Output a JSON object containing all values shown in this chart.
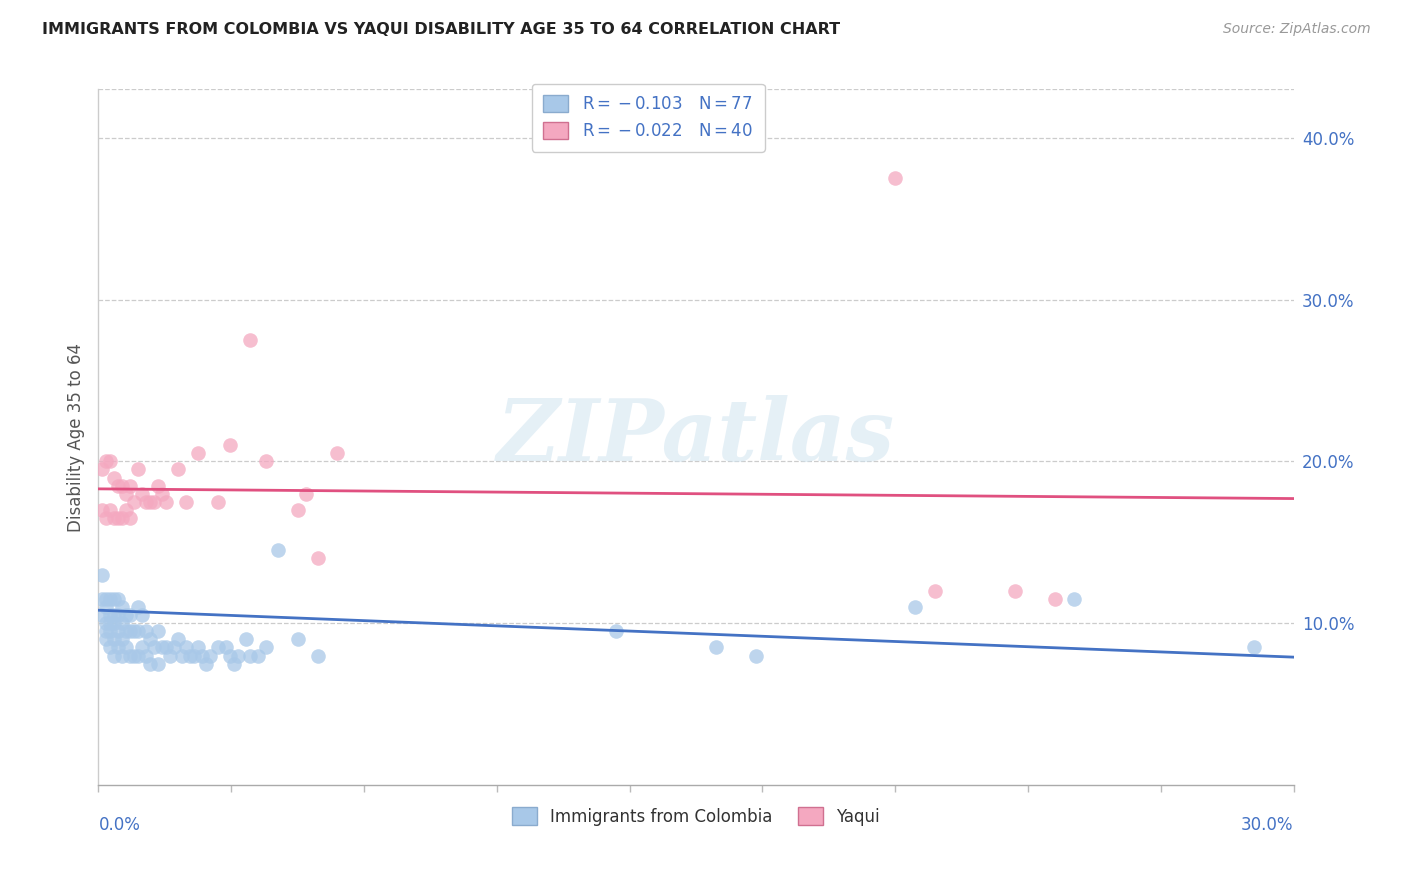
{
  "title": "IMMIGRANTS FROM COLOMBIA VS YAQUI DISABILITY AGE 35 TO 64 CORRELATION CHART",
  "source": "Source: ZipAtlas.com",
  "ylabel": "Disability Age 35 to 64",
  "y_ticks": [
    0.1,
    0.2,
    0.3,
    0.4
  ],
  "y_tick_labels": [
    "10.0%",
    "20.0%",
    "30.0%",
    "40.0%"
  ],
  "x_range": [
    0.0,
    0.3
  ],
  "y_range": [
    0.0,
    0.43
  ],
  "x_tick_labels": [
    "0.0%",
    "30.0%"
  ],
  "color_colombia": "#a8c8e8",
  "color_yaqui": "#f4a8c0",
  "color_line_colombia": "#4472c4",
  "color_line_yaqui": "#e05080",
  "color_axis_ticks": "#4472c4",
  "watermark": "ZIPatlas",
  "colombia_x": [
    0.001,
    0.001,
    0.001,
    0.002,
    0.002,
    0.002,
    0.002,
    0.002,
    0.003,
    0.003,
    0.003,
    0.003,
    0.003,
    0.004,
    0.004,
    0.004,
    0.004,
    0.004,
    0.005,
    0.005,
    0.005,
    0.005,
    0.006,
    0.006,
    0.006,
    0.006,
    0.007,
    0.007,
    0.007,
    0.008,
    0.008,
    0.008,
    0.009,
    0.009,
    0.01,
    0.01,
    0.01,
    0.011,
    0.011,
    0.012,
    0.012,
    0.013,
    0.013,
    0.014,
    0.015,
    0.015,
    0.016,
    0.017,
    0.018,
    0.019,
    0.02,
    0.021,
    0.022,
    0.023,
    0.024,
    0.025,
    0.026,
    0.027,
    0.028,
    0.03,
    0.032,
    0.033,
    0.034,
    0.035,
    0.037,
    0.038,
    0.04,
    0.042,
    0.045,
    0.05,
    0.055,
    0.13,
    0.155,
    0.165,
    0.205,
    0.245,
    0.29
  ],
  "colombia_y": [
    0.13,
    0.115,
    0.105,
    0.115,
    0.11,
    0.1,
    0.095,
    0.09,
    0.115,
    0.105,
    0.1,
    0.095,
    0.085,
    0.115,
    0.105,
    0.1,
    0.09,
    0.08,
    0.115,
    0.105,
    0.095,
    0.085,
    0.11,
    0.1,
    0.09,
    0.08,
    0.105,
    0.095,
    0.085,
    0.105,
    0.095,
    0.08,
    0.095,
    0.08,
    0.11,
    0.095,
    0.08,
    0.105,
    0.085,
    0.095,
    0.08,
    0.09,
    0.075,
    0.085,
    0.095,
    0.075,
    0.085,
    0.085,
    0.08,
    0.085,
    0.09,
    0.08,
    0.085,
    0.08,
    0.08,
    0.085,
    0.08,
    0.075,
    0.08,
    0.085,
    0.085,
    0.08,
    0.075,
    0.08,
    0.09,
    0.08,
    0.08,
    0.085,
    0.145,
    0.09,
    0.08,
    0.095,
    0.085,
    0.08,
    0.11,
    0.115,
    0.085
  ],
  "yaqui_x": [
    0.001,
    0.001,
    0.002,
    0.002,
    0.003,
    0.003,
    0.004,
    0.004,
    0.005,
    0.005,
    0.006,
    0.006,
    0.007,
    0.007,
    0.008,
    0.008,
    0.009,
    0.01,
    0.011,
    0.012,
    0.013,
    0.014,
    0.015,
    0.016,
    0.017,
    0.02,
    0.022,
    0.025,
    0.03,
    0.033,
    0.038,
    0.042,
    0.05,
    0.052,
    0.055,
    0.06,
    0.2,
    0.21,
    0.23,
    0.24
  ],
  "yaqui_y": [
    0.195,
    0.17,
    0.2,
    0.165,
    0.2,
    0.17,
    0.19,
    0.165,
    0.185,
    0.165,
    0.185,
    0.165,
    0.18,
    0.17,
    0.185,
    0.165,
    0.175,
    0.195,
    0.18,
    0.175,
    0.175,
    0.175,
    0.185,
    0.18,
    0.175,
    0.195,
    0.175,
    0.205,
    0.175,
    0.21,
    0.275,
    0.2,
    0.17,
    0.18,
    0.14,
    0.205,
    0.375,
    0.12,
    0.12,
    0.115
  ],
  "colombia_trend_x": [
    0.0,
    0.3
  ],
  "colombia_trend_y": [
    0.108,
    0.079
  ],
  "yaqui_trend_x": [
    0.0,
    0.3
  ],
  "yaqui_trend_y": [
    0.183,
    0.177
  ],
  "figsize": [
    14.06,
    8.92
  ],
  "dpi": 100
}
